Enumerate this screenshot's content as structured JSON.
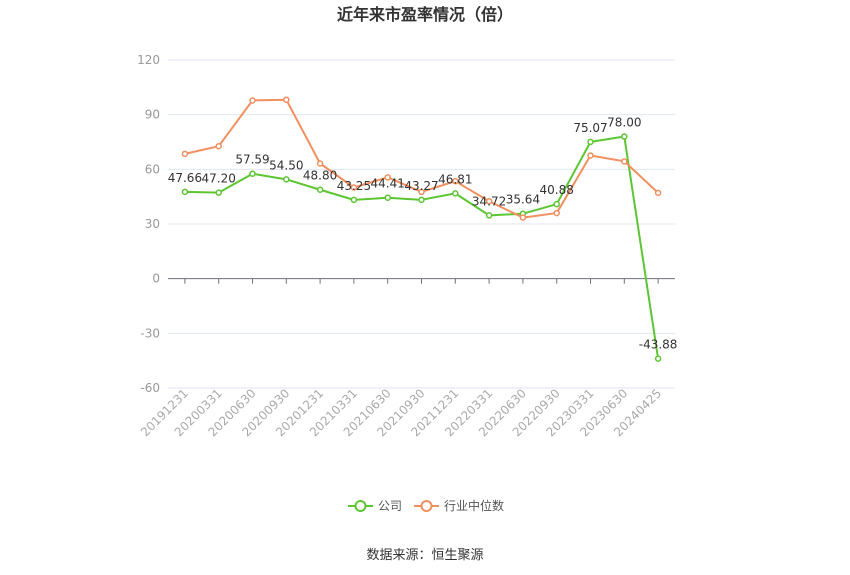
{
  "chart_data": {
    "type": "line",
    "title": "近年来市盈率情况（倍）",
    "xlabel": "",
    "ylabel": "",
    "ylim": [
      -60,
      120
    ],
    "yticks": [
      120,
      90,
      60,
      30,
      0,
      -30,
      -60
    ],
    "grid": true,
    "legend_placement": "bottom",
    "categories": [
      "20191231",
      "20200331",
      "20200630",
      "20200930",
      "20201231",
      "20210331",
      "20210630",
      "20210930",
      "20211231",
      "20220331",
      "20220630",
      "20220930",
      "20230331",
      "20230630",
      "20240425"
    ],
    "series": [
      {
        "name": "公司",
        "color": "#5cc632",
        "values": [
          47.66,
          47.2,
          57.59,
          54.5,
          48.8,
          43.25,
          44.41,
          43.27,
          46.81,
          34.72,
          35.64,
          40.88,
          75.07,
          78.0,
          -43.88
        ],
        "labels": [
          "47.66",
          "47.20",
          "57.59",
          "54.50",
          "48.80",
          "43.25",
          "44.41",
          "43.27",
          "46.81",
          "34.72",
          "35.64",
          "40.88",
          "75.07",
          "78.00",
          "-43.88"
        ]
      },
      {
        "name": "行业中位数",
        "color": "#f28f5e",
        "values": [
          68.5,
          72.7,
          97.8,
          98.2,
          63.2,
          50.0,
          55.6,
          47.6,
          53.5,
          42.5,
          33.5,
          36.0,
          67.6,
          64.4,
          47.1
        ]
      }
    ]
  },
  "source": "数据来源：恒生聚源"
}
